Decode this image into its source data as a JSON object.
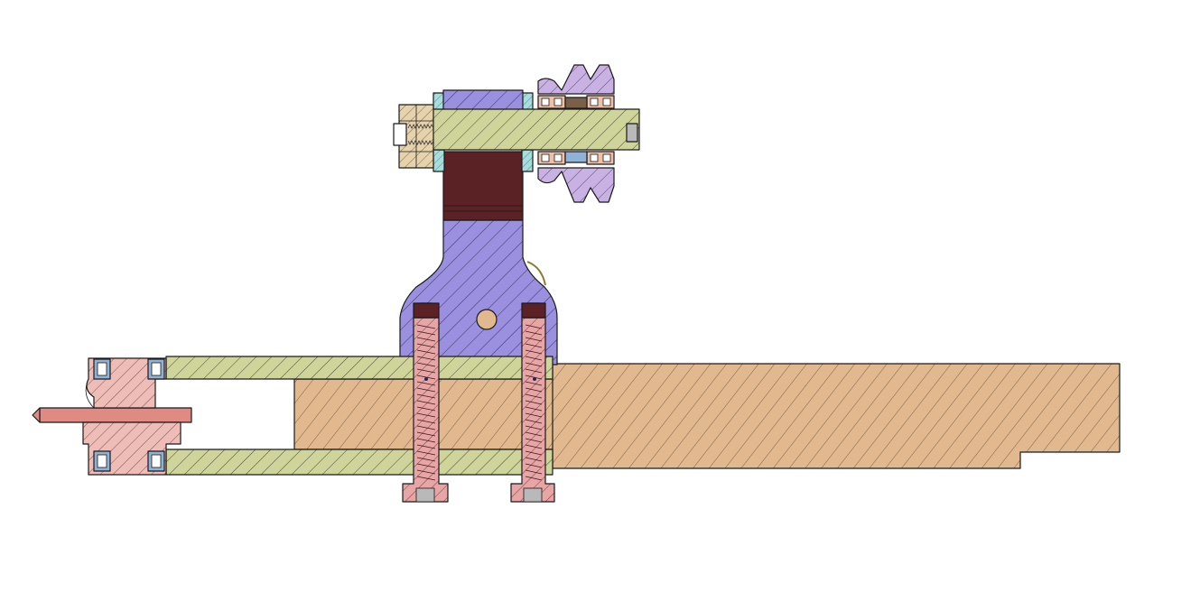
{
  "drawing": {
    "view": "cross-section",
    "hatch": "diagonal",
    "colors": {
      "wood": "#e2b98f",
      "plate": "#cfd49a",
      "bracket": "#9b8fe0",
      "bolt": "#e8a5a6",
      "bolt_head": "#5b2226",
      "spacer": "#5b2226",
      "pulley_top": "#c9b2e3",
      "pulley_left": "#efbdb7",
      "washer": "#a6dede",
      "nut": "#e6d3ac",
      "bearing": "#f0c0a8",
      "bearing_ring": "#8fb2d6",
      "axle": "#cfd49a",
      "pin": "#e08a84",
      "outline": "#1a1a1a"
    },
    "parts": [
      "wood-beam",
      "upper-plate",
      "lower-plate",
      "bracket",
      "top-axle",
      "top-spacer-block",
      "top-pulley",
      "hex-nut",
      "left-pulley",
      "left-pin",
      "bolt-left",
      "bolt-right"
    ]
  }
}
